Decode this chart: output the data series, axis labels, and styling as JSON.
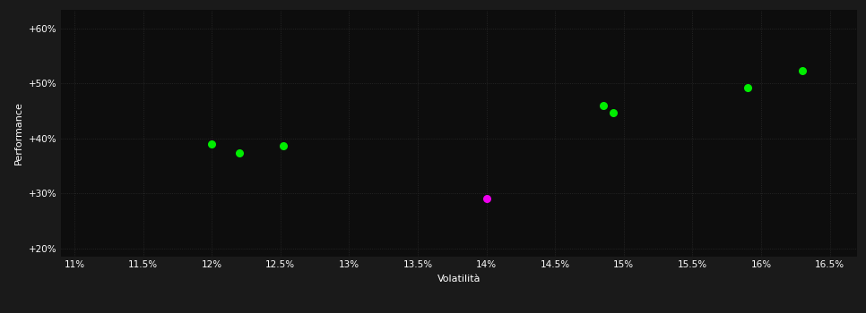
{
  "background_color": "#1a1a1a",
  "plot_bg_color": "#0d0d0d",
  "grid_color": "#2a2a2a",
  "text_color": "#ffffff",
  "xlabel": "Volatilità",
  "ylabel": "Performance",
  "xlim": [
    0.109,
    0.167
  ],
  "ylim": [
    0.185,
    0.635
  ],
  "xtick_values": [
    0.11,
    0.115,
    0.12,
    0.125,
    0.13,
    0.135,
    0.14,
    0.145,
    0.15,
    0.155,
    0.16,
    0.165
  ],
  "ytick_values": [
    0.2,
    0.3,
    0.4,
    0.5,
    0.6
  ],
  "green_points": [
    [
      0.12,
      0.39
    ],
    [
      0.122,
      0.374
    ],
    [
      0.1252,
      0.386
    ],
    [
      0.1485,
      0.46
    ],
    [
      0.1492,
      0.447
    ],
    [
      0.159,
      0.492
    ],
    [
      0.163,
      0.524
    ]
  ],
  "magenta_points": [
    [
      0.14,
      0.291
    ]
  ],
  "green_color": "#00ee00",
  "magenta_color": "#ee00ee",
  "marker_size": 30,
  "font_size_axis_label": 8,
  "font_size_tick": 7.5
}
